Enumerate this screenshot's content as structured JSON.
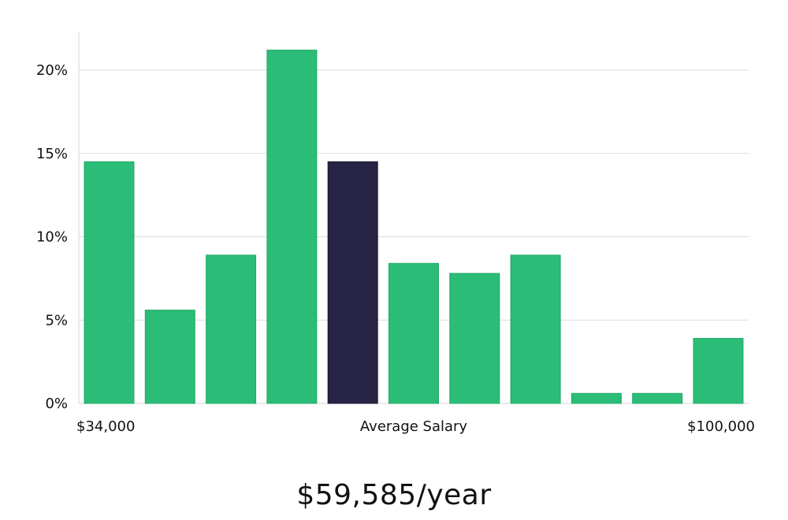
{
  "chart_data": {
    "type": "bar",
    "title": "",
    "xlabel": "Average Salary",
    "ylabel": "",
    "x_range_labels": {
      "min": "$34,000",
      "max": "$100,000"
    },
    "ylim": [
      0,
      22
    ],
    "yticks": [
      0,
      5,
      10,
      15,
      20
    ],
    "ytick_labels": [
      "0%",
      "5%",
      "10%",
      "15%",
      "20%"
    ],
    "values": [
      14.5,
      5.6,
      8.9,
      21.2,
      14.5,
      8.4,
      7.8,
      8.9,
      0.6,
      0.6,
      3.9
    ],
    "highlight_index": 4,
    "grid": true
  },
  "colors": {
    "bar": "#2bbd77",
    "bar_stroke": "#22a866",
    "highlight": "#272445",
    "highlight_stroke": "#1a1833"
  },
  "average_salary": "$59,585/year"
}
